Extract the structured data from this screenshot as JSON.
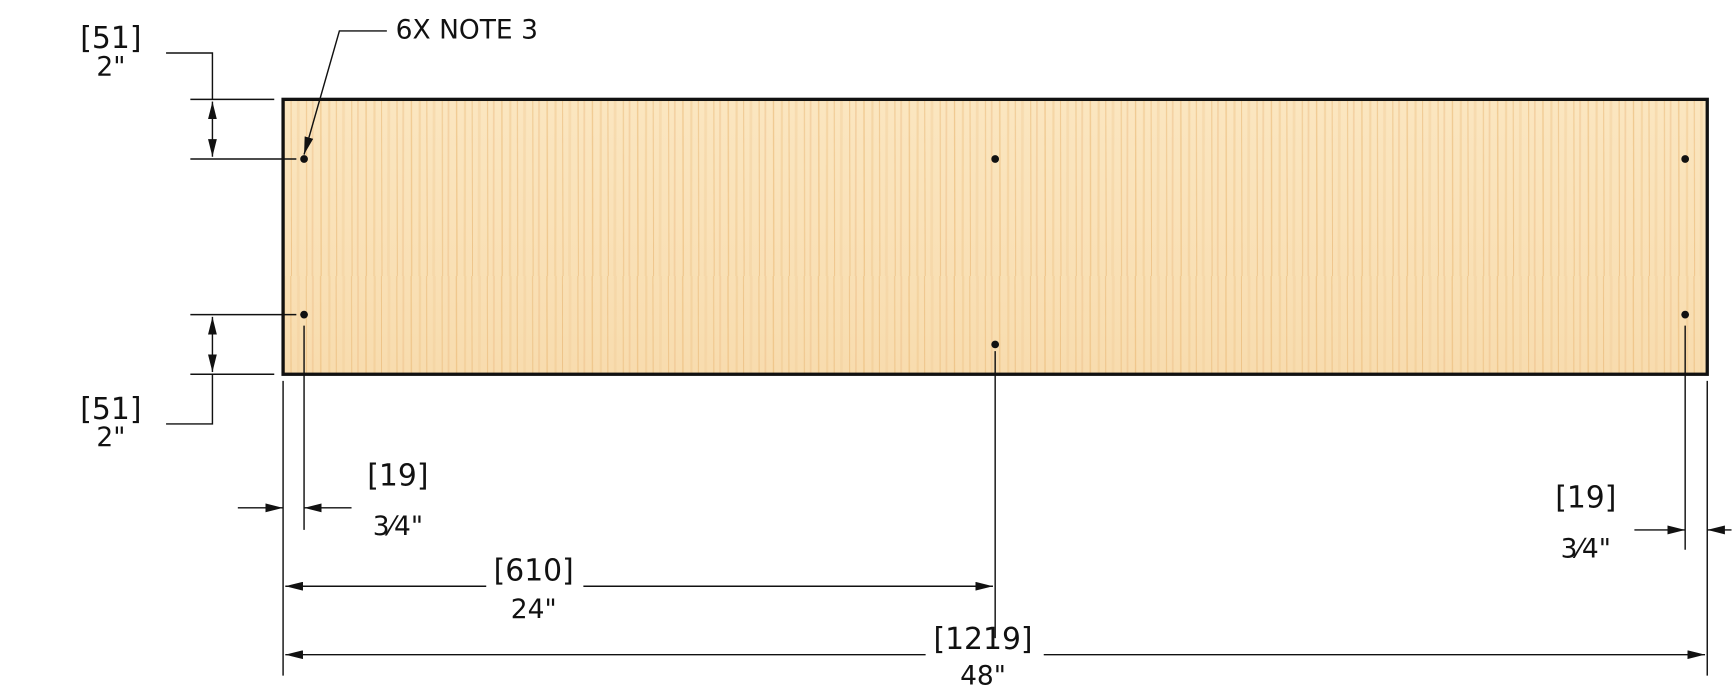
{
  "note": "6X NOTE 3",
  "dimensions": [
    {
      "mm": "[51]",
      "inch": "2\""
    },
    {
      "mm": "[51]",
      "inch": "2\""
    },
    {
      "mm": "[19]",
      "inch": "3⁄4\""
    },
    {
      "mm": "[19]",
      "inch": "3⁄4\""
    },
    {
      "mm": "[610]",
      "inch": "24\""
    },
    {
      "mm": "[1219]",
      "inch": "48\""
    }
  ]
}
